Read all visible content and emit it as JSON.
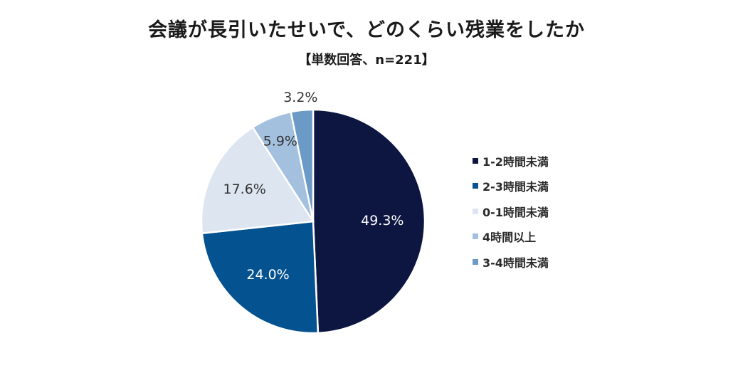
{
  "chart_data": {
    "type": "pie",
    "title": "会議が長引いたせいで、どのくらい残業をしたか",
    "subtitle": "【単数回答、n=221】",
    "slices": [
      {
        "label": "1-2時間未満",
        "value": 49.3,
        "display": "49.3%",
        "color": "#0c1641",
        "label_color": "#ffffff"
      },
      {
        "label": "2-3時間未満",
        "value": 24.0,
        "display": "24.0%",
        "color": "#04528f",
        "label_color": "#ffffff"
      },
      {
        "label": "0-1時間未満",
        "value": 17.6,
        "display": "17.6%",
        "color": "#dde5f0",
        "label_color": "#333333"
      },
      {
        "label": "4時間以上",
        "value": 5.9,
        "display": "5.9%",
        "color": "#a3c0df",
        "label_color": "#333333"
      },
      {
        "label": "3-4時間未満",
        "value": 3.2,
        "display": "3.2%",
        "color": "#6c9ac7",
        "label_color": "#333333"
      }
    ],
    "legend_order": [
      "1-2時間未満",
      "2-3時間未満",
      "0-1時間未満",
      "4時間以上",
      "3-4時間未満"
    ],
    "start_angle": "12 o'clock",
    "direction": "clockwise"
  }
}
